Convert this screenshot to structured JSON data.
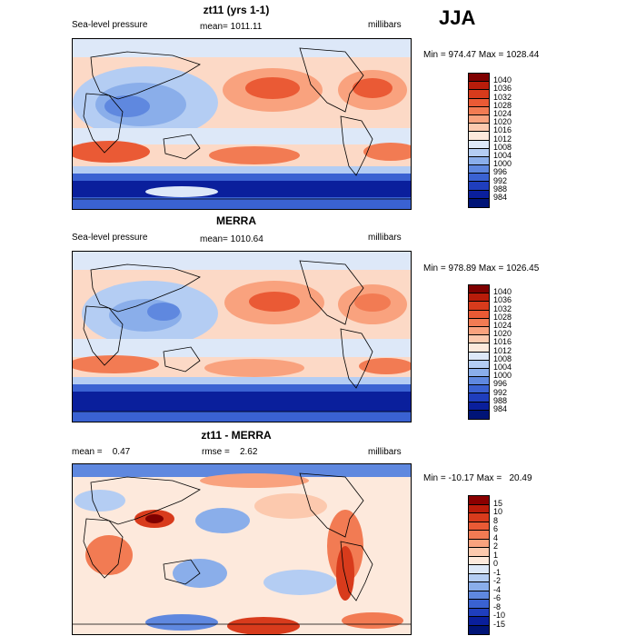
{
  "season": "JJA",
  "panels": [
    {
      "title": "zt11 (yrs 1-1)",
      "left_label": "Sea-level pressure",
      "mid_label": "mean= 1011.11",
      "units": "millibars",
      "minmax": "Min = 974.47 Max = 1028.44"
    },
    {
      "title": "MERRA",
      "left_label": "Sea-level pressure",
      "mid_label": "mean= 1010.64",
      "units": "millibars",
      "minmax": "Min = 978.89 Max = 1026.45"
    },
    {
      "title": "zt11 - MERRA",
      "left_label": "mean =    0.47",
      "mid_label": "rmse =    2.62",
      "units": "millibars",
      "minmax": "Min = -10.17 Max =   20.49"
    }
  ],
  "colorbars": [
    {
      "labels": [
        "1040",
        "1036",
        "1032",
        "1028",
        "1024",
        "1020",
        "1016",
        "1012",
        "1008",
        "1004",
        "1000",
        "996",
        "992",
        "988",
        "984"
      ],
      "colors": [
        "#7f0000",
        "#b81c0a",
        "#d83b1c",
        "#ea5a35",
        "#f27b53",
        "#f9a27e",
        "#fcc9ae",
        "#fde9dc",
        "#dde8f8",
        "#b4cdf3",
        "#8aaeea",
        "#5f88df",
        "#3a62d2",
        "#1f3ebd",
        "#0a1f9c",
        "#001477"
      ]
    },
    {
      "labels": [
        "1040",
        "1036",
        "1032",
        "1028",
        "1024",
        "1020",
        "1016",
        "1012",
        "1008",
        "1004",
        "1000",
        "996",
        "992",
        "988",
        "984"
      ],
      "colors": [
        "#7f0000",
        "#b81c0a",
        "#d83b1c",
        "#ea5a35",
        "#f27b53",
        "#f9a27e",
        "#fcc9ae",
        "#fde9dc",
        "#dde8f8",
        "#b4cdf3",
        "#8aaeea",
        "#5f88df",
        "#3a62d2",
        "#1f3ebd",
        "#0a1f9c",
        "#001477"
      ]
    },
    {
      "labels": [
        "15",
        "10",
        "8",
        "6",
        "4",
        "2",
        "1",
        "0",
        "-1",
        "-2",
        "-4",
        "-6",
        "-8",
        "-10",
        "-15"
      ],
      "colors": [
        "#8b0000",
        "#bb1c0a",
        "#d83b1c",
        "#ea5a35",
        "#f27b53",
        "#f9a27e",
        "#fcc9ae",
        "#fde9dc",
        "#dde8f8",
        "#b4cdf3",
        "#8aaeea",
        "#5f88df",
        "#3a62d2",
        "#1f3ebd",
        "#0a1f9c",
        "#001477"
      ]
    }
  ]
}
